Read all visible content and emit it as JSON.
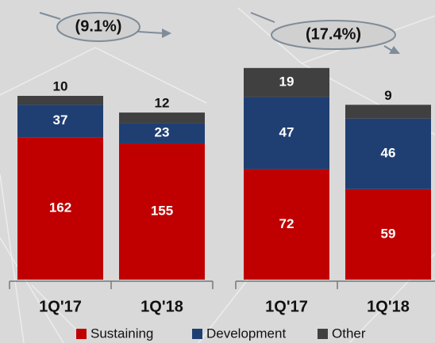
{
  "chart_data": [
    {
      "type": "stacked-bar",
      "annotation": "(9.1%)",
      "categories": [
        "1Q'17",
        "1Q'18"
      ],
      "series": [
        {
          "name": "Sustaining",
          "color": "#c00000",
          "values": [
            162,
            155
          ]
        },
        {
          "name": "Development",
          "color": "#1f3f73",
          "values": [
            37,
            23
          ]
        },
        {
          "name": "Other",
          "color": "#404040",
          "values": [
            10,
            12
          ]
        }
      ],
      "ylim": [
        0,
        300
      ]
    },
    {
      "type": "stacked-bar",
      "annotation": "(17.4%)",
      "categories": [
        "1Q'17",
        "1Q'18"
      ],
      "series": [
        {
          "name": "Sustaining",
          "color": "#c00000",
          "values": [
            72,
            59
          ]
        },
        {
          "name": "Development",
          "color": "#1f3f73",
          "values": [
            47,
            46
          ]
        },
        {
          "name": "Other",
          "color": "#404040",
          "values": [
            19,
            9
          ]
        }
      ],
      "ylim": [
        0,
        172
      ]
    }
  ]
}
